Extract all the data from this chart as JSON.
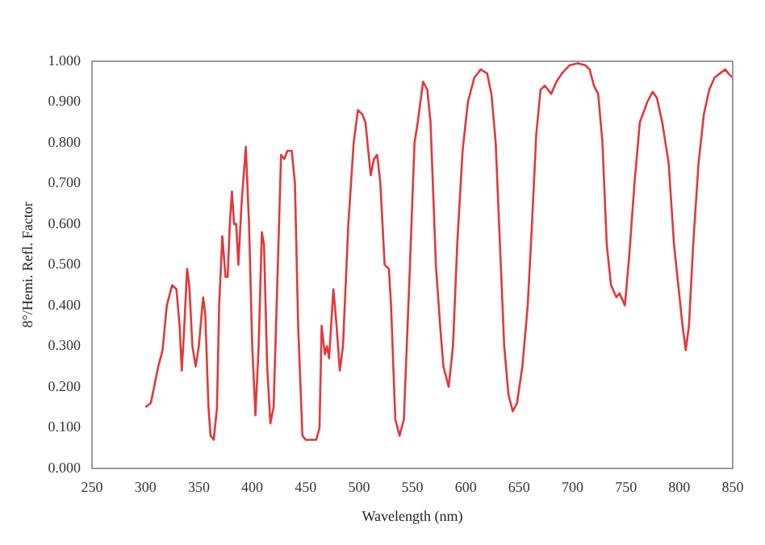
{
  "chart_data": {
    "type": "line",
    "xlabel": "Wavelength (nm)",
    "ylabel": "8°/Hemi. Refl. Factor",
    "xlim": [
      250,
      850
    ],
    "ylim": [
      0,
      1
    ],
    "xticks": [
      250,
      300,
      350,
      400,
      450,
      500,
      550,
      600,
      650,
      700,
      750,
      800,
      850
    ],
    "yticks": [
      {
        "value": 0,
        "label": "0.000"
      },
      {
        "value": 0.1,
        "label": "0.100"
      },
      {
        "value": 0.2,
        "label": "0.200"
      },
      {
        "value": 0.3,
        "label": "0.300"
      },
      {
        "value": 0.4,
        "label": "0.400"
      },
      {
        "value": 0.5,
        "label": "0.500"
      },
      {
        "value": 0.6,
        "label": "0.600"
      },
      {
        "value": 0.7,
        "label": "0.700"
      },
      {
        "value": 0.8,
        "label": "0.800"
      },
      {
        "value": 0.9,
        "label": "0.900"
      },
      {
        "value": 1,
        "label": "1.000"
      }
    ],
    "grid": false,
    "legend": false,
    "marker": "none",
    "line_style": "solid",
    "series": [
      {
        "color": "#e0393b",
        "x": [
          300,
          305,
          312,
          316,
          320,
          325,
          329,
          332,
          334,
          336,
          339,
          341,
          344,
          347,
          350,
          354,
          356,
          359,
          361,
          364,
          367,
          369,
          372,
          375,
          377,
          379,
          381,
          383,
          385,
          387,
          390,
          394,
          397,
          400,
          403,
          406,
          409,
          411,
          414,
          417,
          420,
          424,
          427,
          430,
          433,
          437,
          440,
          443,
          447,
          450,
          460,
          463,
          465,
          468,
          470,
          472,
          476,
          479,
          482,
          485,
          490,
          495,
          499,
          503,
          506,
          511,
          514,
          517,
          520,
          524,
          528,
          530,
          534,
          538,
          542,
          547,
          552,
          555,
          560,
          564,
          567,
          572,
          576,
          579,
          584,
          588,
          592,
          597,
          602,
          608,
          614,
          620,
          624,
          628,
          632,
          636,
          640,
          644,
          648,
          653,
          658,
          662,
          666,
          670,
          674,
          680,
          685,
          690,
          697,
          705,
          712,
          716,
          720,
          724,
          728,
          732,
          736,
          741,
          744,
          749,
          753,
          758,
          763,
          770,
          775,
          779,
          784,
          790,
          795,
          799,
          803,
          806,
          809,
          813,
          818,
          823,
          828,
          833,
          838,
          843,
          846,
          850
        ],
        "values": [
          0.15,
          0.16,
          0.25,
          0.29,
          0.4,
          0.45,
          0.44,
          0.35,
          0.24,
          0.33,
          0.49,
          0.45,
          0.3,
          0.25,
          0.3,
          0.42,
          0.38,
          0.15,
          0.08,
          0.07,
          0.15,
          0.4,
          0.57,
          0.47,
          0.47,
          0.6,
          0.68,
          0.6,
          0.6,
          0.5,
          0.65,
          0.79,
          0.6,
          0.3,
          0.13,
          0.3,
          0.58,
          0.55,
          0.25,
          0.11,
          0.15,
          0.5,
          0.77,
          0.76,
          0.78,
          0.78,
          0.7,
          0.35,
          0.08,
          0.07,
          0.07,
          0.1,
          0.35,
          0.28,
          0.3,
          0.27,
          0.44,
          0.35,
          0.24,
          0.3,
          0.6,
          0.8,
          0.88,
          0.87,
          0.85,
          0.72,
          0.76,
          0.77,
          0.7,
          0.5,
          0.49,
          0.4,
          0.12,
          0.08,
          0.12,
          0.45,
          0.8,
          0.85,
          0.95,
          0.93,
          0.85,
          0.5,
          0.35,
          0.25,
          0.2,
          0.3,
          0.55,
          0.78,
          0.9,
          0.96,
          0.98,
          0.97,
          0.92,
          0.8,
          0.55,
          0.3,
          0.18,
          0.14,
          0.16,
          0.25,
          0.4,
          0.6,
          0.82,
          0.93,
          0.94,
          0.92,
          0.95,
          0.97,
          0.99,
          0.995,
          0.99,
          0.98,
          0.94,
          0.92,
          0.8,
          0.55,
          0.45,
          0.42,
          0.43,
          0.4,
          0.52,
          0.7,
          0.85,
          0.9,
          0.925,
          0.91,
          0.85,
          0.75,
          0.55,
          0.45,
          0.35,
          0.29,
          0.35,
          0.55,
          0.75,
          0.87,
          0.93,
          0.96,
          0.97,
          0.98,
          0.97,
          0.96
        ]
      }
    ]
  }
}
